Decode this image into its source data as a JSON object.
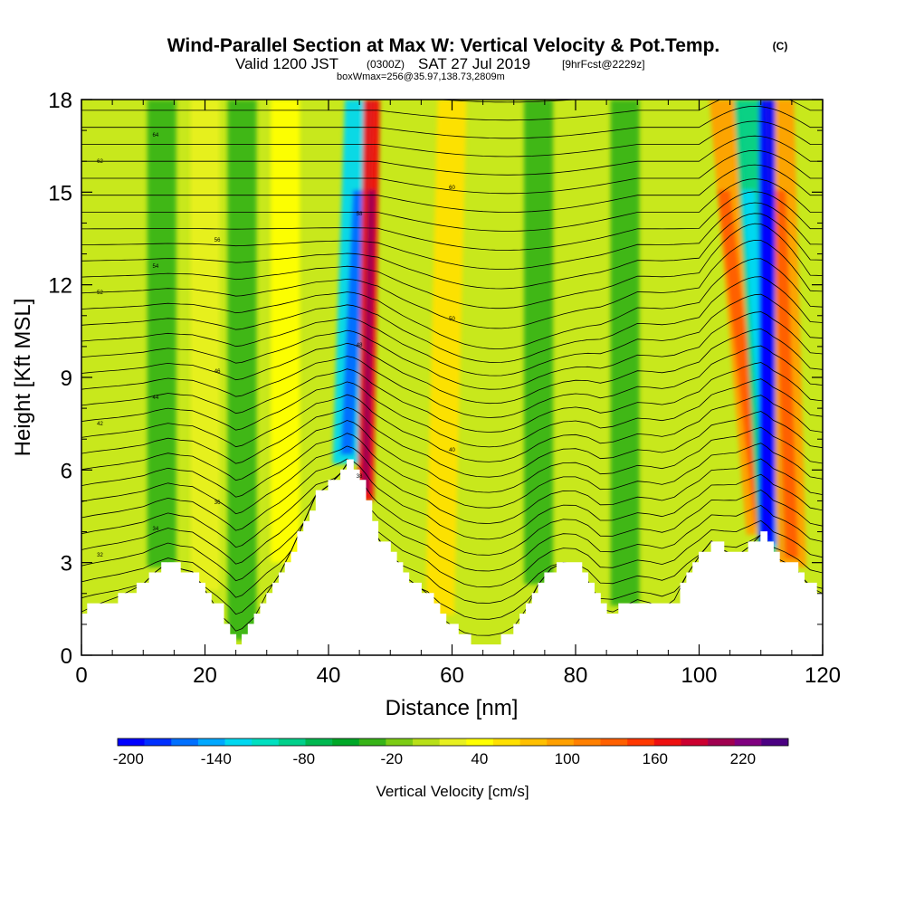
{
  "header": {
    "title_main": "Wind-Parallel Section at Max W: Vertical Velocity & Pot.Temp.",
    "title_mark": "(C)",
    "valid_prefix": "Valid 1200 JST",
    "valid_utc": "(0300Z)",
    "valid_date": "SAT 27 Jul 2019",
    "valid_fcst": "[9hrFcst@2229z]",
    "box_info": "boxWmax=256@35.97,138.73,2809m"
  },
  "chart_data": {
    "type": "heatmap",
    "xlabel": "Distance [nm]",
    "ylabel": "Height [Kft MSL]",
    "xlim": [
      0,
      120
    ],
    "ylim": [
      0,
      18
    ],
    "x_ticks": [
      "0",
      "20",
      "40",
      "60",
      "80",
      "100",
      "120"
    ],
    "y_ticks": [
      "0",
      "3",
      "6",
      "9",
      "12",
      "15",
      "18"
    ],
    "terrain_kft": {
      "x": [
        0,
        2,
        6,
        10,
        12,
        14,
        16,
        18,
        20,
        22,
        24,
        25,
        26,
        28,
        30,
        32,
        34,
        36,
        38,
        40,
        42,
        43,
        44,
        45,
        46,
        47,
        48,
        50,
        52,
        54,
        56,
        58,
        60,
        62,
        64,
        66,
        68,
        70,
        72,
        74,
        76,
        78,
        80,
        82,
        84,
        86,
        88,
        90,
        92,
        94,
        96,
        98,
        100,
        102,
        104,
        106,
        108,
        110,
        111,
        112,
        114,
        116,
        118,
        120
      ],
      "y": [
        1.4,
        1.6,
        1.9,
        2.3,
        2.7,
        3.0,
        2.8,
        2.7,
        2.1,
        1.5,
        0.8,
        0.35,
        0.5,
        1.2,
        2.0,
        2.6,
        3.4,
        4.3,
        5.2,
        5.5,
        5.9,
        6.2,
        6.0,
        5.6,
        5.0,
        4.3,
        3.8,
        3.2,
        2.6,
        2.3,
        2.0,
        1.3,
        0.9,
        0.5,
        0.35,
        0.35,
        0.5,
        0.9,
        1.5,
        2.3,
        2.8,
        3.0,
        2.9,
        2.4,
        1.5,
        1.4,
        1.6,
        1.8,
        1.7,
        1.5,
        1.8,
        2.6,
        3.2,
        3.7,
        3.4,
        3.2,
        3.5,
        3.9,
        3.6,
        3.2,
        3.0,
        2.7,
        2.2,
        2.0
      ]
    },
    "updraft_columns": [
      {
        "x_top": 13,
        "x_bottom": 13,
        "slope": 0.0,
        "w_cms": -40
      },
      {
        "x_top": 20,
        "x_bottom": 20,
        "slope": 0.0,
        "w_cms": 20
      },
      {
        "x_top": 26,
        "x_bottom": 26,
        "slope": 0.0,
        "w_cms": -30
      },
      {
        "x_top": 33,
        "x_bottom": 33,
        "slope": 0.0,
        "w_cms": 40
      },
      {
        "x_top": 45,
        "x_bottom": 43,
        "slope": 0.0,
        "w_cms": -120
      },
      {
        "x_top": 47,
        "x_bottom": 46,
        "slope": 0.0,
        "w_cms": 170
      },
      {
        "x_top": 60,
        "x_bottom": 58,
        "slope": 0.0,
        "w_cms": 60
      },
      {
        "x_top": 74,
        "x_bottom": 74,
        "slope": 0.0,
        "w_cms": -30
      },
      {
        "x_top": 88,
        "x_bottom": 88,
        "slope": 0.0,
        "w_cms": -40
      },
      {
        "x_top": 104,
        "x_bottom": 110,
        "slope": 0.0,
        "w_cms": 90
      },
      {
        "x_top": 108,
        "x_bottom": 112,
        "slope": 0.0,
        "w_cms": -90
      },
      {
        "x_top": 113,
        "x_bottom": 115,
        "slope": 0.0,
        "w_cms": 90
      },
      {
        "x_top": 111,
        "x_bottom": 111,
        "slope": 0.0,
        "w_cms": -200
      }
    ],
    "theta_contour_labels": [
      "32",
      "34",
      "36",
      "38",
      "40",
      "42",
      "44",
      "46",
      "48",
      "50",
      "52",
      "54",
      "56",
      "58",
      "60",
      "62",
      "64"
    ],
    "colorbar": {
      "label": "Vertical Velocity [cm/s]",
      "tick_labels": [
        "-200",
        "-140",
        "-80",
        "-20",
        "40",
        "100",
        "160",
        "220"
      ],
      "colors": [
        "#0000ff",
        "#0030ff",
        "#0070ff",
        "#00a8ff",
        "#00d8f0",
        "#00e0c0",
        "#00d08a",
        "#00b850",
        "#00a828",
        "#38b418",
        "#7ccc14",
        "#b8e018",
        "#e8f020",
        "#ffff00",
        "#ffe000",
        "#ffc000",
        "#ffa000",
        "#ff8000",
        "#ff6000",
        "#ff3800",
        "#ee1010",
        "#cc0030",
        "#a00050",
        "#800080",
        "#4b0082"
      ]
    }
  }
}
